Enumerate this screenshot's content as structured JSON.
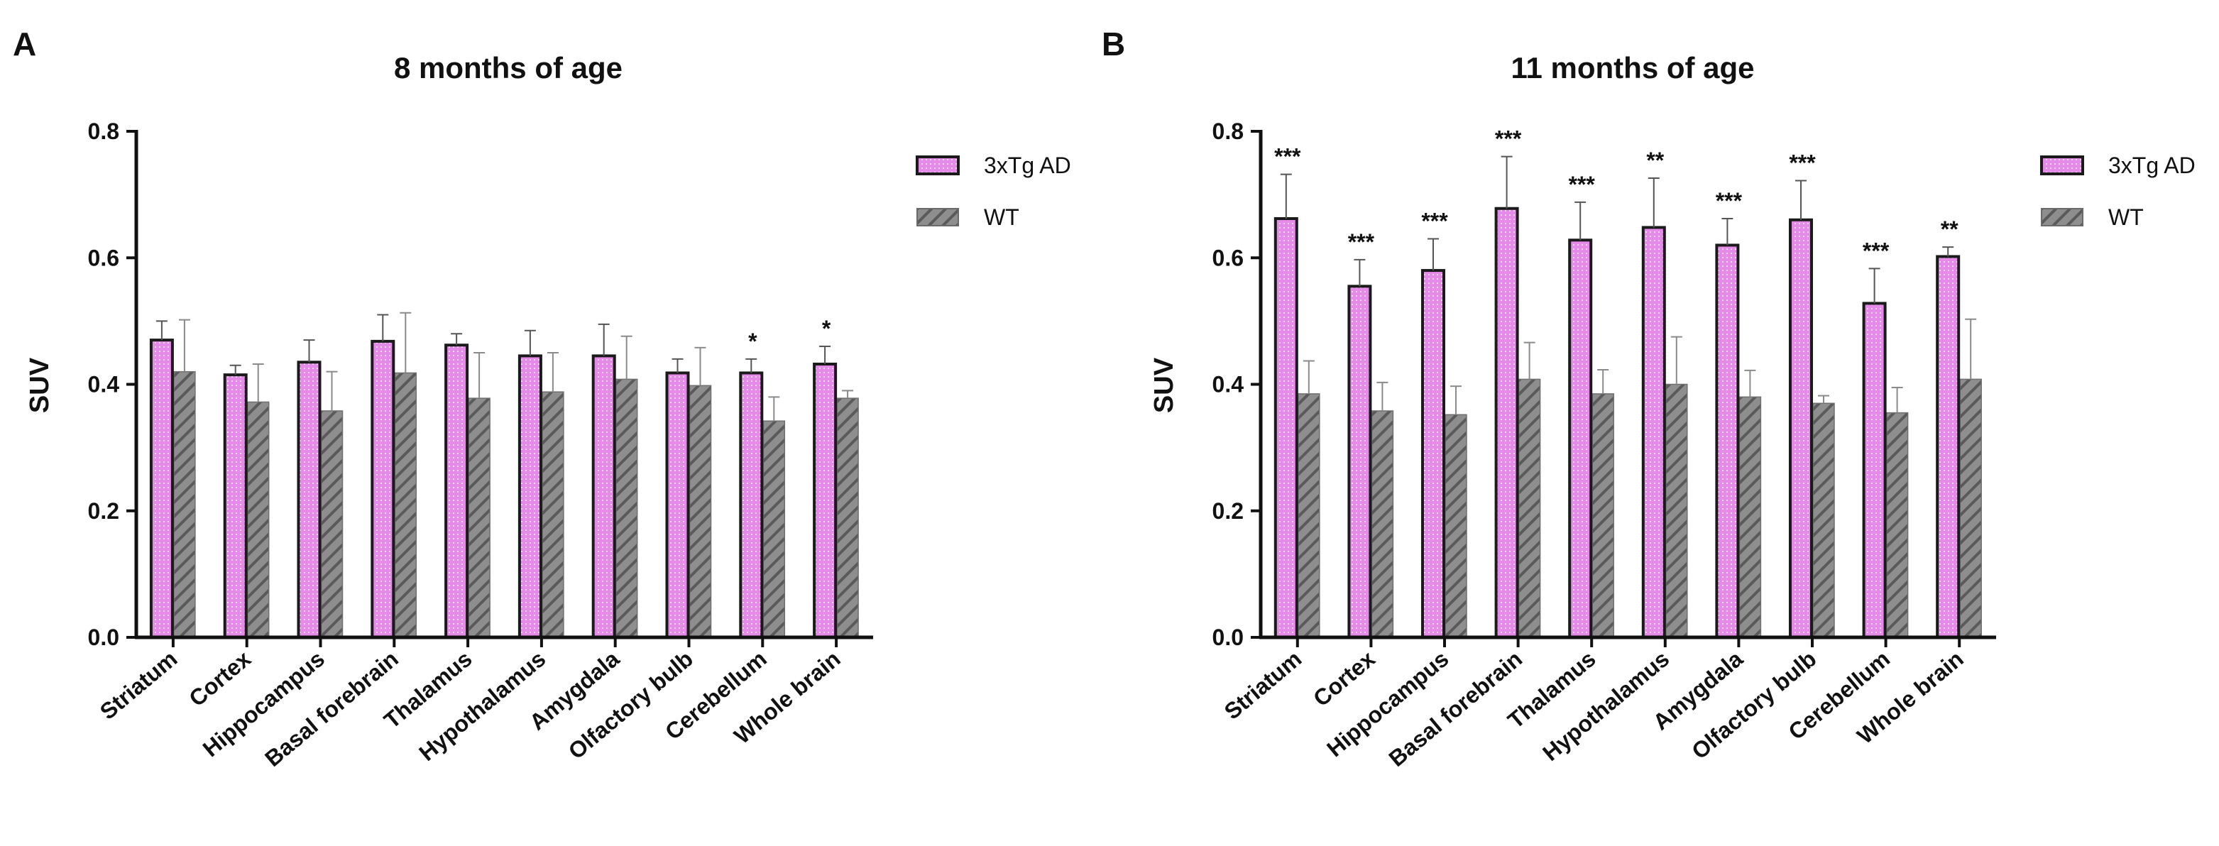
{
  "colors": {
    "tg_fill": "#e58ae8",
    "tg_stroke": "#1a1a1a",
    "wt_fill": "#8e8e8e",
    "wt_hatch": "#5a5a5a",
    "axis": "#111111"
  },
  "chart_data": [
    {
      "type": "bar",
      "panel": "A",
      "title": "8 months of age",
      "xlabel": "",
      "ylabel": "SUV",
      "ylim": [
        0,
        0.8
      ],
      "yticks": [
        "0.0",
        "0.2",
        "0.4",
        "0.6",
        "0.8"
      ],
      "grid": false,
      "legend_position": "top-right",
      "categories": [
        "Striatum",
        "Cortex",
        "Hippocampus",
        "Basal forebrain",
        "Thalamus",
        "Hypothalamus",
        "Amygdala",
        "Olfactory bulb",
        "Cerebellum",
        "Whole brain"
      ],
      "series": [
        {
          "name": "3xTg AD",
          "values": [
            0.47,
            0.415,
            0.435,
            0.468,
            0.462,
            0.445,
            0.445,
            0.418,
            0.418,
            0.432
          ],
          "errors": [
            0.03,
            0.015,
            0.035,
            0.042,
            0.018,
            0.04,
            0.05,
            0.022,
            0.022,
            0.028
          ]
        },
        {
          "name": "WT",
          "values": [
            0.42,
            0.372,
            0.358,
            0.418,
            0.378,
            0.388,
            0.408,
            0.398,
            0.342,
            0.378
          ],
          "errors": [
            0.082,
            0.06,
            0.062,
            0.095,
            0.072,
            0.062,
            0.068,
            0.06,
            0.038,
            0.012
          ]
        }
      ],
      "significance": [
        "",
        "",
        "",
        "",
        "",
        "",
        "",
        "",
        "*",
        "*"
      ]
    },
    {
      "type": "bar",
      "panel": "B",
      "title": "11 months of age",
      "xlabel": "",
      "ylabel": "SUV",
      "ylim": [
        0,
        0.8
      ],
      "yticks": [
        "0.0",
        "0.2",
        "0.4",
        "0.6",
        "0.8"
      ],
      "grid": false,
      "legend_position": "top-right",
      "categories": [
        "Striatum",
        "Cortex",
        "Hippocampus",
        "Basal forebrain",
        "Thalamus",
        "Hypothalamus",
        "Amygdala",
        "Olfactory bulb",
        "Cerebellum",
        "Whole brain"
      ],
      "series": [
        {
          "name": "3xTg AD",
          "values": [
            0.662,
            0.555,
            0.58,
            0.678,
            0.628,
            0.648,
            0.62,
            0.66,
            0.528,
            0.602
          ],
          "errors": [
            0.07,
            0.042,
            0.05,
            0.082,
            0.06,
            0.078,
            0.042,
            0.062,
            0.055,
            0.015
          ]
        },
        {
          "name": "WT",
          "values": [
            0.385,
            0.358,
            0.352,
            0.408,
            0.385,
            0.4,
            0.38,
            0.37,
            0.355,
            0.408
          ],
          "errors": [
            0.052,
            0.045,
            0.045,
            0.058,
            0.038,
            0.075,
            0.042,
            0.012,
            0.04,
            0.095
          ]
        }
      ],
      "significance": [
        "***",
        "***",
        "***",
        "***",
        "***",
        "**",
        "***",
        "***",
        "***",
        "**"
      ]
    }
  ]
}
